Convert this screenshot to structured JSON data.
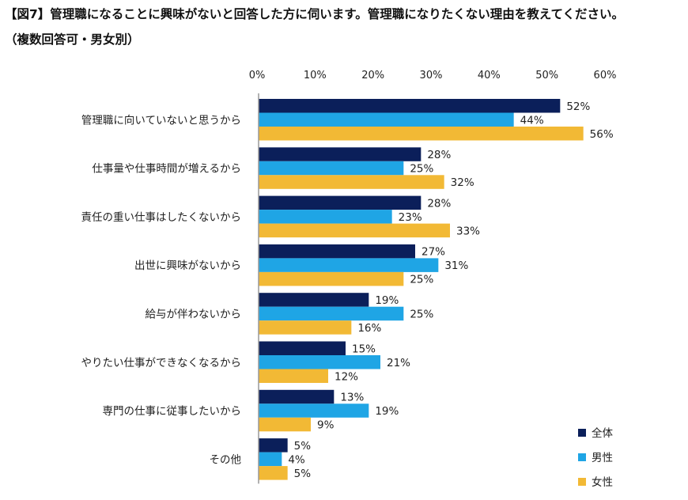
{
  "title": "【図7】管理職になることに興味がないと回答した方に伺います。管理職になりたくない理由を教えてください。",
  "subtitle": "（複数回答可・男女別）",
  "chart_data": {
    "type": "bar",
    "orientation": "horizontal",
    "title": "【図7】管理職になることに興味がないと回答した方に伺います。管理職になりたくない理由を教えてください。",
    "subtitle": "（複数回答可・男女別）",
    "categories": [
      "管理職に向いていないと思うから",
      "仕事量や仕事時間が増えるから",
      "責任の重い仕事はしたくないから",
      "出世に興味がないから",
      "給与が伴わないから",
      "やりたい仕事ができなくなるから",
      "専門の仕事に従事したいから",
      "その他"
    ],
    "series": [
      {
        "name": "全体",
        "color": "#0b1f5a",
        "values": [
          52,
          28,
          28,
          27,
          19,
          15,
          13,
          5
        ]
      },
      {
        "name": "男性",
        "color": "#1fa5e5",
        "values": [
          44,
          25,
          23,
          31,
          25,
          21,
          19,
          4
        ]
      },
      {
        "name": "女性",
        "color": "#f2b935",
        "values": [
          56,
          32,
          33,
          25,
          16,
          12,
          9,
          5
        ]
      }
    ],
    "xlim": [
      0,
      60
    ],
    "xticks": [
      "0%",
      "10%",
      "20%",
      "30%",
      "40%",
      "50%",
      "60%"
    ],
    "axis_position": "top",
    "grid": false,
    "legend_position": "bottom-right",
    "value_format": "%"
  }
}
